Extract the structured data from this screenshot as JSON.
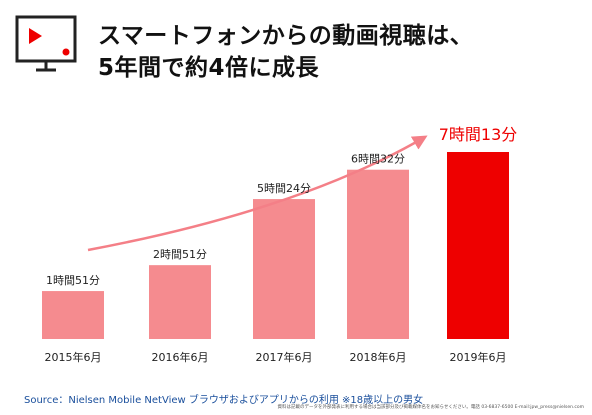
{
  "title": {
    "line1": "スマートフォンからの動画視聴は、",
    "line2": "5年間で約4倍に成長"
  },
  "icon": "video-monitor-icon",
  "colors": {
    "bar": "#f58b8f",
    "highlight_bar": "#ee0000",
    "trend_arrow": "#f47f87",
    "source_text": "#1a4f9c"
  },
  "chart_data": {
    "type": "bar",
    "title": "",
    "xlabel": "",
    "ylabel": "",
    "categories": [
      "2015年6月",
      "2016年6月",
      "2017年6月",
      "2018年6月",
      "2019年6月"
    ],
    "values": [
      111,
      171,
      324,
      392,
      433
    ],
    "data_labels": [
      "1時間51分",
      "2時間51分",
      "5時間24分",
      "6時間32分",
      "7時間13分"
    ],
    "unit": "minutes",
    "highlight_index": 4,
    "ylim": [
      0,
      433
    ],
    "grid": false,
    "legend": "none",
    "trend_arrow": true
  },
  "source": "Source：Nielsen Mobile NetView ブラウザおよびアプリからの利用 ※18歳以上の男女",
  "footnote": "資料は記載のデータを外部発表に利用する場合は当該部分及び掲載媒体名をお知らせください。電話 03-6837-6500 E-mail:jpw_press@nielsen.com"
}
